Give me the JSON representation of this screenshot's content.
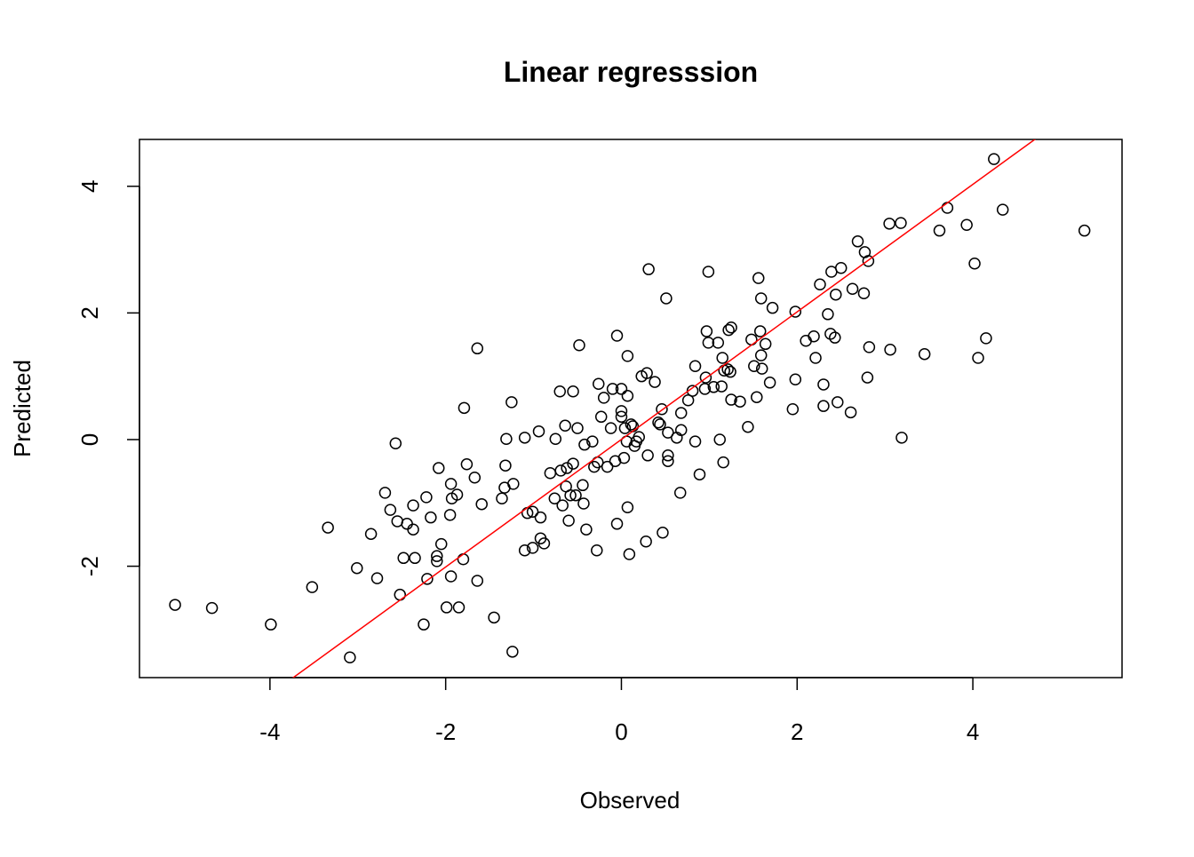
{
  "chart_data": {
    "type": "scatter",
    "title": "Linear regresssion",
    "x_label": "Observed",
    "y_label": "Predicted",
    "x": [
      -5.08,
      -4.66,
      -3.99,
      -3.52,
      -3.34,
      -3.09,
      -3.01,
      -2.85,
      -2.78,
      -2.69,
      -2.63,
      -2.57,
      -2.55,
      -2.52,
      -2.48,
      -2.44,
      -2.37,
      -2.37,
      -2.35,
      -2.25,
      -2.22,
      -2.21,
      -2.17,
      -2.1,
      -2.1,
      -2.08,
      -2.05,
      -1.99,
      -1.95,
      -1.94,
      -1.94,
      -1.93,
      -1.87,
      -1.85,
      -1.8,
      -1.79,
      -1.76,
      -1.67,
      -1.64,
      -1.64,
      -1.59,
      -1.45,
      -1.36,
      -1.33,
      -1.32,
      -1.31,
      -1.25,
      -1.24,
      -1.23,
      -1.1,
      -1.1,
      -1.07,
      -1.01,
      -1.01,
      -0.94,
      -0.92,
      -0.92,
      -0.88,
      -0.81,
      -0.76,
      -0.75,
      -0.7,
      -0.69,
      -0.67,
      -0.64,
      -0.63,
      -0.62,
      -0.6,
      -0.58,
      -0.55,
      -0.55,
      -0.52,
      -0.5,
      -0.48,
      -0.44,
      -0.43,
      -0.42,
      -0.4,
      -0.33,
      -0.31,
      -0.28,
      -0.27,
      -0.26,
      -0.23,
      -0.2,
      -0.16,
      -0.12,
      -0.1,
      -0.07,
      -0.05,
      -0.05,
      0,
      0,
      0,
      0.03,
      0.04,
      0.06,
      0.07,
      0.07,
      0.07,
      0.09,
      0.11,
      0.13,
      0.15,
      0.17,
      0.2,
      0.23,
      0.28,
      0.29,
      0.3,
      0.31,
      0.38,
      0.42,
      0.44,
      0.46,
      0.47,
      0.51,
      0.53,
      0.53,
      0.53,
      0.63,
      0.67,
      0.68,
      0.68,
      0.76,
      0.81,
      0.84,
      0.84,
      0.89,
      0.95,
      0.96,
      0.97,
      0.99,
      0.99,
      1.05,
      1.1,
      1.12,
      1.14,
      1.15,
      1.16,
      1.17,
      1.21,
      1.22,
      1.24,
      1.25,
      1.25,
      1.35,
      1.44,
      1.48,
      1.51,
      1.54,
      1.56,
      1.58,
      1.59,
      1.59,
      1.6,
      1.64,
      1.69,
      1.72,
      1.95,
      1.98,
      1.98,
      2.1,
      2.19,
      2.21,
      2.26,
      2.3,
      2.3,
      2.35,
      2.38,
      2.39,
      2.43,
      2.44,
      2.46,
      2.5,
      2.61,
      2.63,
      2.69,
      2.76,
      2.77,
      2.8,
      2.81,
      2.82,
      3.05,
      3.06,
      3.18,
      3.19,
      3.45,
      3.62,
      3.71,
      3.93,
      4.02,
      4.06,
      4.15,
      4.24,
      4.34,
      5.27
    ],
    "y": [
      -2.61,
      -2.66,
      -2.92,
      -2.33,
      -1.39,
      -3.44,
      -2.03,
      -1.49,
      -2.19,
      -0.84,
      -1.11,
      -0.06,
      -1.29,
      -2.45,
      -1.87,
      -1.33,
      -1.04,
      -1.42,
      -1.87,
      -2.92,
      -0.91,
      -2.2,
      -1.23,
      -1.84,
      -1.92,
      -0.45,
      -1.65,
      -2.65,
      -1.19,
      -0.7,
      -2.16,
      -0.93,
      -0.87,
      -2.65,
      -1.89,
      0.5,
      -0.39,
      -0.6,
      -2.23,
      1.44,
      -1.02,
      -2.81,
      -0.93,
      -0.76,
      -0.41,
      0.01,
      0.59,
      -3.35,
      -0.7,
      0.03,
      -1.75,
      -1.16,
      -1.71,
      -1.14,
      0.13,
      -1.23,
      -1.56,
      -1.64,
      -0.53,
      -0.93,
      0.01,
      0.76,
      -0.49,
      -1.04,
      0.22,
      -0.74,
      -0.45,
      -1.28,
      -0.88,
      -0.38,
      0.76,
      -0.88,
      0.18,
      1.49,
      -0.72,
      -1.01,
      -0.08,
      -1.42,
      -0.03,
      -0.43,
      -1.75,
      -0.36,
      0.88,
      0.36,
      0.66,
      -0.43,
      0.18,
      0.8,
      -0.34,
      -1.33,
      1.64,
      0.45,
      0.36,
      0.8,
      -0.29,
      0.18,
      -0.03,
      0.69,
      -1.07,
      1.32,
      -1.81,
      0.24,
      0.21,
      -0.1,
      -0.03,
      0.04,
      1.0,
      -1.61,
      1.05,
      -0.25,
      2.69,
      0.91,
      0.27,
      0.24,
      0.48,
      -1.47,
      2.23,
      0.11,
      -0.25,
      -0.34,
      0.03,
      -0.84,
      0.15,
      0.42,
      0.62,
      0.77,
      -0.03,
      1.16,
      -0.55,
      0.8,
      0.98,
      1.71,
      1.53,
      2.65,
      0.83,
      1.53,
      0.0,
      0.84,
      1.29,
      -0.36,
      1.09,
      1.11,
      1.73,
      1.07,
      1.77,
      0.63,
      0.6,
      0.2,
      1.58,
      1.16,
      0.67,
      2.55,
      1.71,
      1.33,
      2.23,
      1.12,
      1.51,
      0.9,
      2.08,
      0.48,
      0.95,
      2.02,
      1.56,
      1.63,
      1.29,
      2.45,
      0.87,
      0.53,
      1.98,
      1.67,
      2.65,
      1.61,
      2.29,
      0.59,
      2.71,
      0.43,
      2.38,
      3.13,
      2.31,
      2.96,
      0.98,
      2.82,
      1.46,
      3.41,
      1.42,
      3.42,
      0.03,
      1.35,
      3.3,
      3.66,
      3.39,
      2.78,
      1.29,
      1.6,
      4.43,
      3.63,
      3.3
    ],
    "color": "#000000",
    "fit": {
      "intercept": 0.002,
      "slope": 1.007,
      "color": "#ff0000"
    },
    "xlim": [
      -5.485,
      5.698
    ],
    "ylim": [
      -3.759,
      4.74
    ],
    "xticks": [
      -4,
      -2,
      0,
      2,
      4
    ],
    "yticks": [
      -2,
      0,
      2,
      4
    ]
  }
}
